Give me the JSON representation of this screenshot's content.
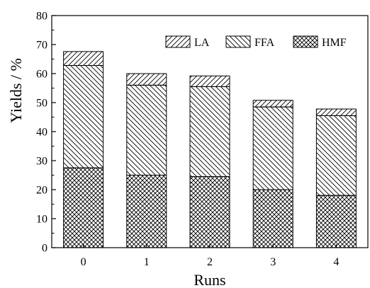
{
  "chart_data": {
    "type": "bar",
    "stacked": true,
    "categories": [
      "0",
      "1",
      "2",
      "3",
      "4"
    ],
    "series": [
      {
        "name": "HMF",
        "values": [
          27.5,
          25.0,
          24.5,
          20.0,
          18.0
        ],
        "pattern": "crosshatch"
      },
      {
        "name": "FFA",
        "values": [
          35.3,
          31.0,
          31.0,
          28.5,
          27.5
        ],
        "pattern": "diagonal-down"
      },
      {
        "name": "LA",
        "values": [
          4.8,
          4.0,
          3.7,
          2.3,
          2.3
        ],
        "pattern": "diagonal-up"
      }
    ],
    "xlabel": "Runs",
    "ylabel": "Yields / %",
    "ylim": [
      0,
      80
    ],
    "yticks": [
      0,
      10,
      20,
      30,
      40,
      50,
      60,
      70,
      80
    ],
    "legend_order": [
      "LA",
      "FFA",
      "HMF"
    ],
    "legend_position": "top-right",
    "grid": false,
    "colors": {
      "bar_fill": "#ffffff",
      "ink": "#000000"
    }
  }
}
